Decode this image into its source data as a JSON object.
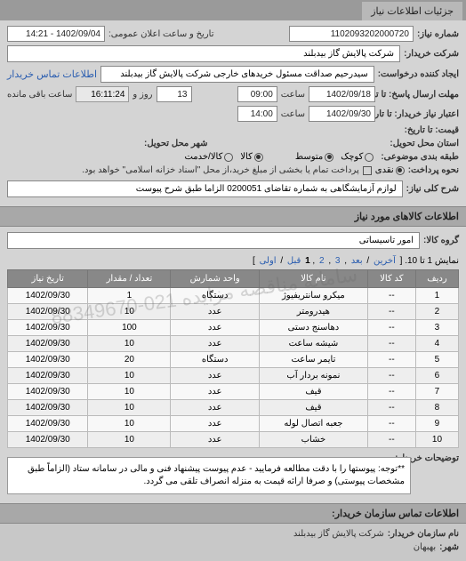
{
  "tab": {
    "label": "جزئیات اطلاعات نیاز"
  },
  "header": {
    "number_label": "شماره نیاز:",
    "number": "1102093202000720",
    "datetime_label": "تاریخ و ساعت اعلان عمومی:",
    "datetime": "1402/09/04 - 14:21",
    "buyer_label": "شرکت خریدار:",
    "buyer": "شرکت پالایش گاز بیدبلند",
    "requester_label": "ایجاد کننده درخواست:",
    "requester": "سیدرحیم صداقت مسئول خریدهای خارجی شرکت پالایش گاز بیدبلند",
    "contact_link": "اطلاعات تماس خریدار"
  },
  "deadlines": {
    "response_until_label": "مهلت ارسال پاسخ: تا تاریخ:",
    "response_date": "1402/09/18",
    "time_label": "ساعت",
    "response_time": "09:00",
    "days_remaining": "13",
    "days_label": "روز و",
    "countdown": "16:11:24",
    "remaining_label": "ساعت باقی مانده",
    "validity_label": "اعتبار نیاز خریدار: تا تاریخ:",
    "validity_date": "1402/09/30",
    "validity_time": "14:00",
    "quote_until_label": "قیمت: تا تاریخ:"
  },
  "address": {
    "state_label": "استان محل تحویل:",
    "city_label": "شهر محل تحویل:"
  },
  "budget": {
    "label": "طبقه بندی موضوعی:",
    "opt_small": "کوچک",
    "opt_medium": "متوسط",
    "opt_goods": "کالا",
    "opt_service": "کالا/خدمت",
    "payment_label": "نحوه پرداخت:",
    "payment_cash": "نقدی",
    "payment_note": "پرداخت تمام یا بخشی از مبلغ خرید،از محل \"اسناد خزانه اسلامی\" خواهد بود."
  },
  "need": {
    "title_label": "شرح کلی نیاز:",
    "title": "لوازم آزمایشگاهی به شماره تقاضای 0200051 الزاما طبق شرح پیوست"
  },
  "goods": {
    "header": "اطلاعات کالاهای مورد نیاز",
    "group_label": "گروه کالا:",
    "group": "امور تاسیساتی"
  },
  "pager": {
    "text": "نمایش 1 تا 10. [",
    "last": "آخرین",
    "next": "بعد",
    "p2": "2",
    "p3": "3",
    "p1": "1",
    "prev": "قبل",
    "first": "اولی",
    "close": "]"
  },
  "table": {
    "cols": [
      "ردیف",
      "کد کالا",
      "نام کالا",
      "واحد شمارش",
      "تعداد / مقدار",
      "تاریخ نیاز"
    ],
    "rows": [
      [
        "1",
        "--",
        "میکرو سانتریفیوژ",
        "دستگاه",
        "1",
        "1402/09/30"
      ],
      [
        "2",
        "--",
        "هیدرومتر",
        "عدد",
        "10",
        "1402/09/30"
      ],
      [
        "3",
        "--",
        "دهاسنج دستی",
        "عدد",
        "100",
        "1402/09/30"
      ],
      [
        "4",
        "--",
        "شیشه ساعت",
        "عدد",
        "10",
        "1402/09/30"
      ],
      [
        "5",
        "--",
        "تایمر ساعت",
        "دستگاه",
        "20",
        "1402/09/30"
      ],
      [
        "6",
        "--",
        "نمونه بردار آب",
        "عدد",
        "10",
        "1402/09/30"
      ],
      [
        "7",
        "--",
        "قیف",
        "عدد",
        "10",
        "1402/09/30"
      ],
      [
        "8",
        "--",
        "قیف",
        "عدد",
        "10",
        "1402/09/30"
      ],
      [
        "9",
        "--",
        "جعبه اتصال لوله",
        "عدد",
        "10",
        "1402/09/30"
      ],
      [
        "10",
        "--",
        "خشاب",
        "عدد",
        "10",
        "1402/09/30"
      ]
    ]
  },
  "note": {
    "label": "توضیحات خریدار:",
    "text": "**توجه: پیوستها را با دقت مطالعه فرمایید - عدم پیوست پیشنهاد فنی و مالی در سامانه ستاد (الزاماً طبق مشخصات پیوستی) و صرفا ارائه قیمت به منزله انصراف تلقی می گردد."
  },
  "footer": {
    "contact_header": "اطلاعات تماس سازمان خریدار:",
    "org_label": "نام سازمان خریدار:",
    "org": "شرکت پالایش گاز بیدبلند",
    "city_label": "شهر:",
    "city": "بهبهان"
  },
  "watermark": "سامانه مناقصه مزایده\n021-88349670",
  "colors": {
    "bg": "#c8c8c8",
    "panel": "#d4d4d4",
    "header_bg": "#a8a8a8",
    "th_bg": "#888",
    "link": "#2a5db0"
  }
}
